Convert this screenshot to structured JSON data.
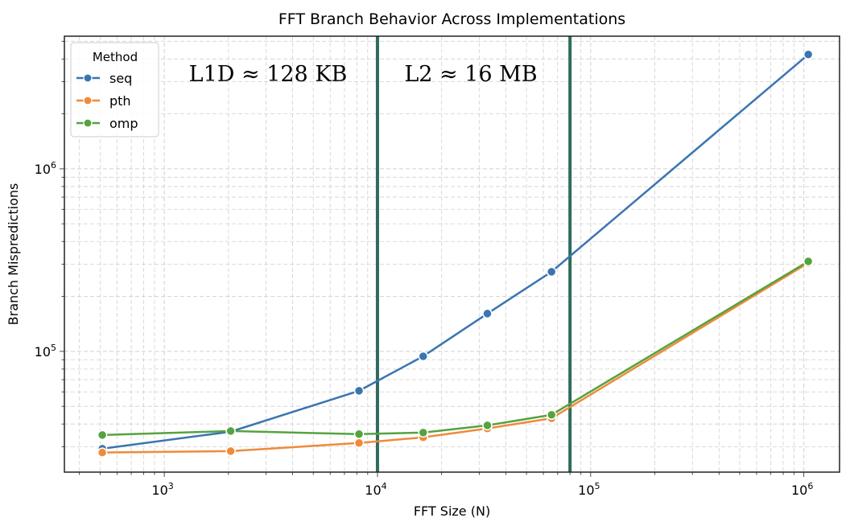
{
  "chart_data": {
    "type": "line",
    "title": "FFT Branch Behavior Across Implementations",
    "xlabel": "FFT Size (N)",
    "ylabel": "Branch Mispredictions",
    "xscale": "log",
    "yscale": "log",
    "xlim": [
      340,
      1470000
    ],
    "ylim": [
      21800,
      5330000
    ],
    "grid": true,
    "x_ticks": [
      {
        "value": 1000,
        "base": "10",
        "exp": "3"
      },
      {
        "value": 10000,
        "base": "10",
        "exp": "4"
      },
      {
        "value": 100000,
        "base": "10",
        "exp": "5"
      },
      {
        "value": 1000000,
        "base": "10",
        "exp": "6"
      }
    ],
    "y_ticks": [
      {
        "value": 100000,
        "base": "10",
        "exp": "5"
      },
      {
        "value": 1000000,
        "base": "10",
        "exp": "6"
      }
    ],
    "legend": {
      "title": "Method",
      "placement": "top-left"
    },
    "x": [
      512,
      2048,
      8192,
      16384,
      32768,
      65536,
      1048576
    ],
    "series": [
      {
        "name": "seq",
        "color": "#3a75b0",
        "values": [
          29300,
          36300,
          60800,
          94000,
          161000,
          273000,
          4230000
        ]
      },
      {
        "name": "pth",
        "color": "#ef8a3a",
        "values": [
          27900,
          28400,
          31500,
          33800,
          37800,
          43000,
          305000
        ]
      },
      {
        "name": "omp",
        "color": "#55a33f",
        "values": [
          34800,
          36600,
          35200,
          35900,
          39300,
          44900,
          311000
        ]
      }
    ],
    "vlines": {
      "color": "#2e6b5e",
      "values": [
        10000,
        80000
      ]
    },
    "annotations": [
      "L1D ≈ 128 KB",
      "L2 ≈ 16 MB"
    ]
  }
}
